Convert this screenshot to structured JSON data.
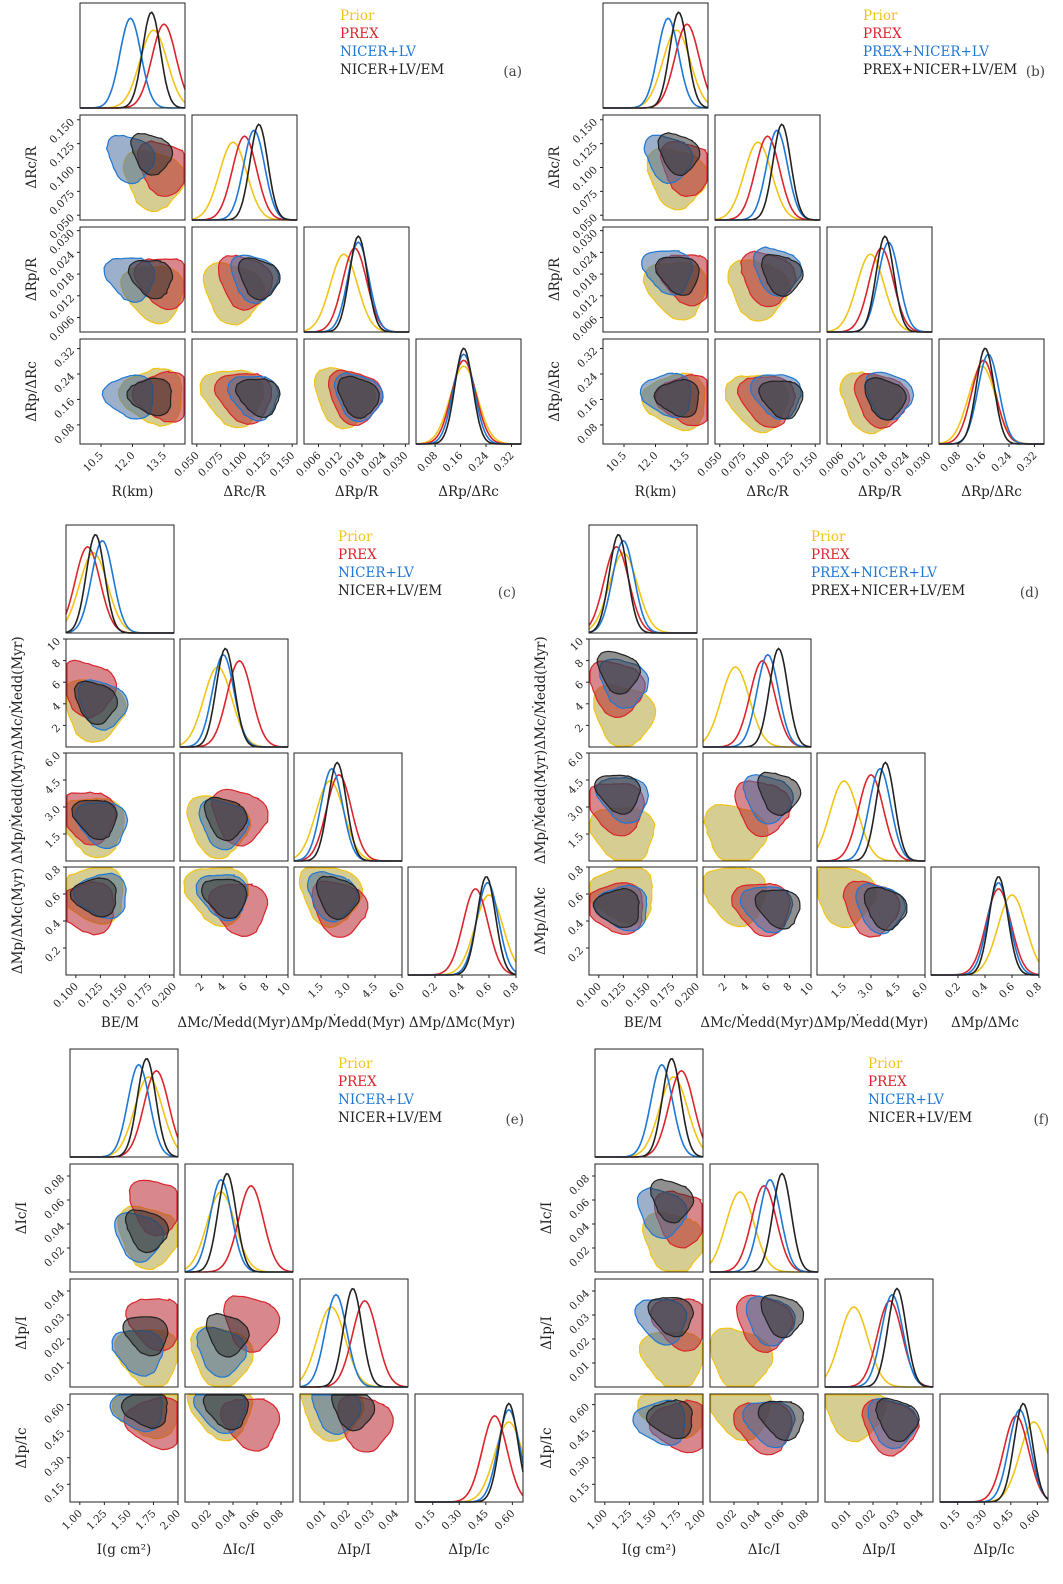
{
  "colors": {
    "Prior": "#f2c419",
    "PREX": "#d9252b",
    "NICER+LV": "#1f77d4",
    "NICER+LV/EM": "#222222",
    "PREX+NICER+LV": "#1f77d4",
    "PREX+NICER+LV/EM": "#222222"
  },
  "fill_colors": {
    "Prior": "#b5a43a",
    "PREX": "#b8262e",
    "NICER+LV": "#4a6fa0",
    "NICER+LV/EM": "#333333",
    "PREX+NICER+LV": "#4a6fa0",
    "PREX+NICER+LV/EM": "#333333"
  },
  "chart_data": [
    {
      "type": "corner",
      "label": "(a)",
      "legend": [
        "Prior",
        "PREX",
        "NICER+LV",
        "NICER+LV/EM"
      ],
      "parameters": [
        {
          "name": "R(km)",
          "range": [
            9.5,
            14.5
          ],
          "ticks": [
            "10.5",
            "12.0",
            "13.5"
          ],
          "tick_values": [
            10.5,
            12.0,
            13.5
          ]
        },
        {
          "name": "ΔRc/R",
          "range": [
            0.045,
            0.155
          ],
          "ticks": [
            "0.050",
            "0.075",
            "0.100",
            "0.125",
            "0.150"
          ],
          "tick_values": [
            0.05,
            0.075,
            0.1,
            0.125,
            0.15
          ]
        },
        {
          "name": "ΔRp/R",
          "range": [
            0.002,
            0.031
          ],
          "ticks": [
            "0.006",
            "0.012",
            "0.018",
            "0.024",
            "0.030"
          ],
          "tick_values": [
            0.006,
            0.012,
            0.018,
            0.024,
            0.03
          ]
        },
        {
          "name": "ΔRp/ΔRc",
          "range": [
            0.02,
            0.35
          ],
          "ticks": [
            "0.08",
            "0.16",
            "0.24",
            "0.32"
          ],
          "tick_values": [
            0.08,
            0.16,
            0.24,
            0.32
          ]
        }
      ],
      "marginal_peaks": [
        {
          "Prior": 13.0,
          "PREX": 13.5,
          "NICER+LV": 11.9,
          "NICER+LV/EM": 12.9
        },
        {
          "Prior": 0.088,
          "PREX": 0.1,
          "NICER+LV": 0.11,
          "NICER+LV/EM": 0.115
        },
        {
          "Prior": 0.013,
          "PREX": 0.016,
          "NICER+LV": 0.017,
          "NICER+LV/EM": 0.017
        },
        {
          "Prior": 0.17,
          "PREX": 0.17,
          "NICER+LV": 0.17,
          "NICER+LV/EM": 0.17
        }
      ]
    },
    {
      "type": "corner",
      "label": "(b)",
      "legend": [
        "Prior",
        "PREX",
        "PREX+NICER+LV",
        "PREX+NICER+LV/EM"
      ],
      "parameters": [
        {
          "name": "R(km)",
          "range": [
            9.5,
            14.5
          ],
          "ticks": [
            "10.5",
            "12.0",
            "13.5"
          ],
          "tick_values": [
            10.5,
            12.0,
            13.5
          ]
        },
        {
          "name": "ΔRc/R",
          "range": [
            0.045,
            0.155
          ],
          "ticks": [
            "0.050",
            "0.075",
            "0.100",
            "0.125",
            "0.150"
          ],
          "tick_values": [
            0.05,
            0.075,
            0.1,
            0.125,
            0.15
          ]
        },
        {
          "name": "ΔRp/R",
          "range": [
            0.002,
            0.031
          ],
          "ticks": [
            "0.006",
            "0.012",
            "0.018",
            "0.024",
            "0.030"
          ],
          "tick_values": [
            0.006,
            0.012,
            0.018,
            0.024,
            0.03
          ]
        },
        {
          "name": "ΔRp/ΔRc",
          "range": [
            0.02,
            0.35
          ],
          "ticks": [
            "0.08",
            "0.16",
            "0.24",
            "0.32"
          ],
          "tick_values": [
            0.08,
            0.16,
            0.24,
            0.32
          ]
        }
      ],
      "marginal_peaks": [
        {
          "Prior": 13.0,
          "PREX": 13.5,
          "PREX+NICER+LV": 12.6,
          "PREX+NICER+LV/EM": 13.1
        },
        {
          "Prior": 0.09,
          "PREX": 0.1,
          "PREX+NICER+LV": 0.11,
          "PREX+NICER+LV/EM": 0.115
        },
        {
          "Prior": 0.014,
          "PREX": 0.017,
          "PREX+NICER+LV": 0.019,
          "PREX+NICER+LV/EM": 0.018
        },
        {
          "Prior": 0.155,
          "PREX": 0.16,
          "PREX+NICER+LV": 0.175,
          "PREX+NICER+LV/EM": 0.165
        }
      ]
    },
    {
      "type": "corner",
      "label": "(c)",
      "legend": [
        "Prior",
        "PREX",
        "NICER+LV",
        "NICER+LV/EM"
      ],
      "parameters": [
        {
          "name": "BE/M",
          "range": [
            0.09,
            0.2
          ],
          "ticks": [
            "0.100",
            "0.125",
            "0.150",
            "0.175",
            "0.200"
          ],
          "tick_values": [
            0.1,
            0.125,
            0.15,
            0.175,
            0.2
          ]
        },
        {
          "name": "ΔMc/Ṁedd(Myr)",
          "range": [
            0,
            10
          ],
          "ticks": [
            "2",
            "4",
            "6",
            "8",
            "10"
          ],
          "tick_values": [
            2,
            4,
            6,
            8,
            10
          ]
        },
        {
          "name": "ΔMp/Ṁedd(Myr)",
          "range": [
            0,
            6
          ],
          "ticks": [
            "1.5",
            "3.0",
            "4.5",
            "6.0"
          ],
          "tick_values": [
            1.5,
            3.0,
            4.5,
            6.0
          ]
        },
        {
          "name": "ΔMp/ΔMc(Myr)",
          "range": [
            0,
            0.8
          ],
          "ticks": [
            "0.2",
            "0.4",
            "0.6",
            "0.8"
          ],
          "tick_values": [
            0.2,
            0.4,
            0.6,
            0.8
          ]
        }
      ],
      "marginal_peaks": [
        {
          "Prior": 0.118,
          "PREX": 0.112,
          "NICER+LV": 0.127,
          "NICER+LV/EM": 0.12
        },
        {
          "Prior": 3.5,
          "PREX": 5.5,
          "NICER+LV": 4.0,
          "NICER+LV/EM": 4.2
        },
        {
          "Prior": 2.0,
          "PREX": 2.5,
          "NICER+LV": 2.1,
          "NICER+LV/EM": 2.4
        },
        {
          "Prior": 0.6,
          "PREX": 0.5,
          "NICER+LV": 0.59,
          "NICER+LV/EM": 0.58
        }
      ]
    },
    {
      "type": "corner",
      "label": "(d)",
      "legend": [
        "Prior",
        "PREX",
        "PREX+NICER+LV",
        "PREX+NICER+LV/EM"
      ],
      "parameters": [
        {
          "name": "BE/M",
          "range": [
            0.09,
            0.2
          ],
          "ticks": [
            "0.100",
            "0.125",
            "0.150",
            "0.175",
            "0.200"
          ],
          "tick_values": [
            0.1,
            0.125,
            0.15,
            0.175,
            0.2
          ]
        },
        {
          "name": "ΔMc/Ṁedd(Myr)",
          "range": [
            0,
            10
          ],
          "ticks": [
            "2",
            "4",
            "6",
            "8",
            "10"
          ],
          "tick_values": [
            2,
            4,
            6,
            8,
            10
          ]
        },
        {
          "name": "ΔMp/Ṁedd(Myr)",
          "range": [
            0,
            6
          ],
          "ticks": [
            "1.5",
            "3.0",
            "4.5",
            "6.0"
          ],
          "tick_values": [
            1.5,
            3.0,
            4.5,
            6.0
          ]
        },
        {
          "name": "ΔMp/ΔMc",
          "range": [
            0,
            0.8
          ],
          "ticks": [
            "0.2",
            "0.4",
            "0.6",
            "0.8"
          ],
          "tick_values": [
            0.2,
            0.4,
            0.6,
            0.8
          ]
        }
      ],
      "marginal_peaks": [
        {
          "Prior": 0.125,
          "PREX": 0.118,
          "PREX+NICER+LV": 0.125,
          "PREX+NICER+LV/EM": 0.12
        },
        {
          "Prior": 3.0,
          "PREX": 5.5,
          "PREX+NICER+LV": 6.0,
          "PREX+NICER+LV/EM": 7.0
        },
        {
          "Prior": 1.5,
          "PREX": 3.0,
          "PREX+NICER+LV": 3.5,
          "PREX+NICER+LV/EM": 3.8
        },
        {
          "Prior": 0.6,
          "PREX": 0.5,
          "PREX+NICER+LV": 0.5,
          "PREX+NICER+LV/EM": 0.5
        }
      ]
    },
    {
      "type": "corner",
      "label": "(e)",
      "legend": [
        "Prior",
        "PREX",
        "NICER+LV",
        "NICER+LV/EM"
      ],
      "parameters": [
        {
          "name": "I(g cm²)",
          "range": [
            0.9,
            2.0
          ],
          "ticks": [
            "1.00",
            "1.25",
            "1.50",
            "1.75",
            "2.00"
          ],
          "tick_values": [
            1.0,
            1.25,
            1.5,
            1.75,
            2.0
          ]
        },
        {
          "name": "ΔIc/I",
          "range": [
            0,
            0.09
          ],
          "ticks": [
            "0.02",
            "0.04",
            "0.06",
            "0.08"
          ],
          "tick_values": [
            0.02,
            0.04,
            0.06,
            0.08
          ]
        },
        {
          "name": "ΔIp/I",
          "range": [
            0,
            0.045
          ],
          "ticks": [
            "0.01",
            "0.02",
            "0.03",
            "0.04"
          ],
          "tick_values": [
            0.01,
            0.02,
            0.03,
            0.04
          ]
        },
        {
          "name": "ΔIp/Ic",
          "range": [
            0.05,
            0.66
          ],
          "ticks": [
            "0.15",
            "0.30",
            "0.45",
            "0.60"
          ],
          "tick_values": [
            0.15,
            0.3,
            0.45,
            0.6
          ]
        }
      ],
      "marginal_peaks": [
        {
          "Prior": 1.7,
          "PREX": 1.78,
          "NICER+LV": 1.6,
          "NICER+LV/EM": 1.68
        },
        {
          "Prior": 0.03,
          "PREX": 0.055,
          "NICER+LV": 0.03,
          "NICER+LV/EM": 0.035
        },
        {
          "Prior": 0.013,
          "PREX": 0.027,
          "NICER+LV": 0.015,
          "NICER+LV/EM": 0.022
        },
        {
          "Prior": 0.58,
          "PREX": 0.5,
          "NICER+LV": 0.58,
          "NICER+LV/EM": 0.58
        }
      ]
    },
    {
      "type": "corner",
      "label": "(f)",
      "legend": [
        "Prior",
        "PREX",
        "NICER+LV",
        "NICER+LV/EM"
      ],
      "parameters": [
        {
          "name": "I(g cm²)",
          "range": [
            0.9,
            2.0
          ],
          "ticks": [
            "1.00",
            "1.25",
            "1.50",
            "1.75",
            "2.00"
          ],
          "tick_values": [
            1.0,
            1.25,
            1.5,
            1.75,
            2.0
          ]
        },
        {
          "name": "ΔIc/I",
          "range": [
            0,
            0.09
          ],
          "ticks": [
            "0.02",
            "0.04",
            "0.06",
            "0.08"
          ],
          "tick_values": [
            0.02,
            0.04,
            0.06,
            0.08
          ]
        },
        {
          "name": "ΔIp/I",
          "range": [
            0,
            0.045
          ],
          "ticks": [
            "0.01",
            "0.02",
            "0.03",
            "0.04"
          ],
          "tick_values": [
            0.01,
            0.02,
            0.03,
            0.04
          ]
        },
        {
          "name": "ΔIp/Ic",
          "range": [
            0.05,
            0.66
          ],
          "ticks": [
            "0.15",
            "0.30",
            "0.45",
            "0.60"
          ],
          "tick_values": [
            0.15,
            0.3,
            0.45,
            0.6
          ]
        }
      ],
      "marginal_peaks": [
        {
          "Prior": 1.7,
          "PREX": 1.78,
          "NICER+LV": 1.58,
          "NICER+LV/EM": 1.68
        },
        {
          "Prior": 0.025,
          "PREX": 0.045,
          "NICER+LV": 0.05,
          "NICER+LV/EM": 0.06
        },
        {
          "Prior": 0.012,
          "PREX": 0.027,
          "NICER+LV": 0.028,
          "NICER+LV/EM": 0.03
        },
        {
          "Prior": 0.58,
          "PREX": 0.48,
          "NICER+LV": 0.5,
          "NICER+LV/EM": 0.52
        }
      ]
    }
  ]
}
